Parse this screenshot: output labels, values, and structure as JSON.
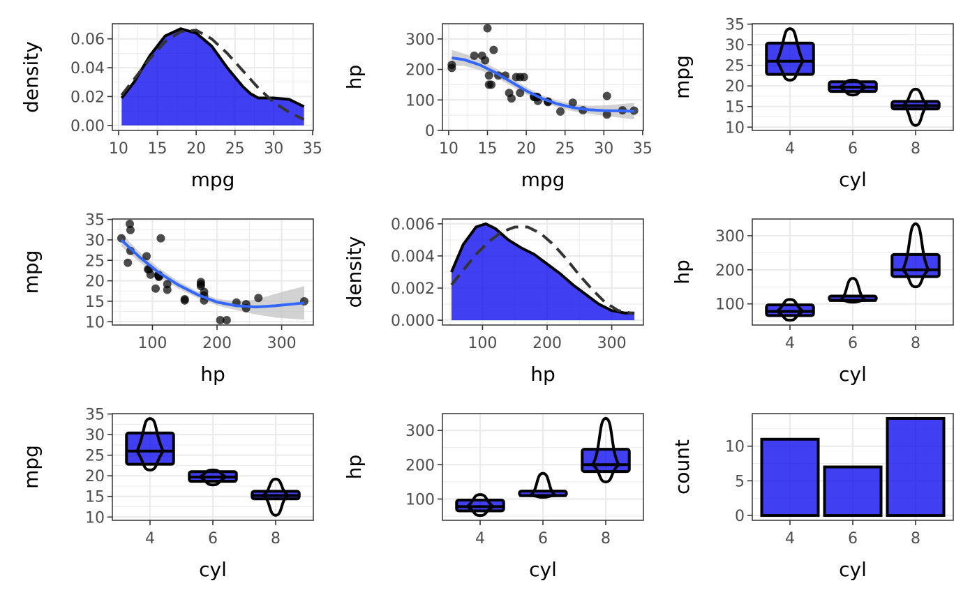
{
  "colors": {
    "fill": "#0000ee",
    "smooth": "#3366ff",
    "band": "#bfbfbf",
    "outline": "#000000",
    "grid": "#ebebeb",
    "panel_border": "#333333"
  },
  "chart_data": [
    {
      "id": "density-mpg",
      "type": "area",
      "xlabel": "mpg",
      "ylabel": "density",
      "xlim": [
        9.2,
        35.1
      ],
      "ylim": [
        -0.0035,
        0.0705
      ],
      "xticks": [
        10,
        15,
        20,
        25,
        30,
        35
      ],
      "yticks": [
        0,
        0.02,
        0.04,
        0.06
      ],
      "ytick_labels": [
        "0.00",
        "0.02",
        "0.04",
        "0.06"
      ],
      "grid": true,
      "series": [
        {
          "kind": "kde",
          "x": [
            10.4,
            12,
            14,
            16,
            18,
            20,
            22,
            24,
            26,
            27,
            28,
            30,
            32,
            33.9
          ],
          "y": [
            0.019,
            0.03,
            0.048,
            0.062,
            0.067,
            0.064,
            0.055,
            0.04,
            0.027,
            0.022,
            0.019,
            0.019,
            0.018,
            0.013
          ]
        },
        {
          "kind": "normal-reference",
          "x": [
            10.4,
            12,
            14,
            16,
            18,
            20,
            22,
            24,
            26,
            28,
            30,
            32,
            33.9
          ],
          "y": [
            0.021,
            0.032,
            0.046,
            0.058,
            0.065,
            0.066,
            0.06,
            0.05,
            0.038,
            0.026,
            0.016,
            0.009,
            0.004
          ]
        }
      ]
    },
    {
      "id": "scatter-mpg-hp",
      "type": "scatter",
      "xlabel": "mpg",
      "ylabel": "hp",
      "xlim": [
        9.2,
        35.1
      ],
      "ylim": [
        0,
        350
      ],
      "xticks": [
        10,
        15,
        20,
        25,
        30,
        35
      ],
      "yticks": [
        0,
        100,
        200,
        300
      ],
      "grid": true,
      "points": [
        {
          "x": 21.0,
          "y": 110
        },
        {
          "x": 21.0,
          "y": 110
        },
        {
          "x": 22.8,
          "y": 93
        },
        {
          "x": 21.4,
          "y": 110
        },
        {
          "x": 18.7,
          "y": 175
        },
        {
          "x": 18.1,
          "y": 105
        },
        {
          "x": 14.3,
          "y": 245
        },
        {
          "x": 24.4,
          "y": 62
        },
        {
          "x": 22.8,
          "y": 95
        },
        {
          "x": 19.2,
          "y": 123
        },
        {
          "x": 17.8,
          "y": 123
        },
        {
          "x": 16.4,
          "y": 180
        },
        {
          "x": 17.3,
          "y": 180
        },
        {
          "x": 15.2,
          "y": 180
        },
        {
          "x": 10.4,
          "y": 205
        },
        {
          "x": 10.4,
          "y": 215
        },
        {
          "x": 14.7,
          "y": 230
        },
        {
          "x": 32.4,
          "y": 66
        },
        {
          "x": 30.4,
          "y": 52
        },
        {
          "x": 33.9,
          "y": 65
        },
        {
          "x": 21.5,
          "y": 97
        },
        {
          "x": 15.5,
          "y": 150
        },
        {
          "x": 15.2,
          "y": 150
        },
        {
          "x": 13.3,
          "y": 245
        },
        {
          "x": 19.2,
          "y": 175
        },
        {
          "x": 27.3,
          "y": 66
        },
        {
          "x": 26.0,
          "y": 91
        },
        {
          "x": 30.4,
          "y": 113
        },
        {
          "x": 15.8,
          "y": 264
        },
        {
          "x": 19.7,
          "y": 175
        },
        {
          "x": 15.0,
          "y": 335
        },
        {
          "x": 21.4,
          "y": 109
        }
      ],
      "smooth": {
        "x": [
          10.4,
          12,
          14,
          16,
          18,
          20,
          22,
          24,
          26,
          28,
          30,
          32,
          33.9
        ],
        "y": [
          238,
          232,
          215,
          190,
          160,
          130,
          105,
          87,
          75,
          68,
          65,
          64,
          63
        ],
        "lower": [
          212,
          212,
          198,
          176,
          147,
          118,
          94,
          76,
          63,
          55,
          48,
          42,
          36
        ],
        "upper": [
          264,
          252,
          232,
          204,
          173,
          142,
          116,
          98,
          87,
          81,
          82,
          86,
          90
        ]
      }
    },
    {
      "id": "box-cyl-mpg-1",
      "type": "box",
      "xlabel": "cyl",
      "ylabel": "mpg",
      "categories": [
        "4",
        "6",
        "8"
      ],
      "ylim": [
        9.2,
        35.1
      ],
      "yticks": [
        10,
        15,
        20,
        25,
        30,
        35
      ],
      "grid": true,
      "boxes": [
        {
          "q1": 22.8,
          "median": 26.0,
          "q3": 30.4,
          "min": 21.4,
          "max": 33.9
        },
        {
          "q1": 18.65,
          "median": 19.7,
          "q3": 21.0,
          "min": 17.8,
          "max": 21.4
        },
        {
          "q1": 14.4,
          "median": 15.2,
          "q3": 16.25,
          "min": 10.4,
          "max": 19.2
        }
      ]
    },
    {
      "id": "scatter-hp-mpg",
      "type": "scatter",
      "xlabel": "hp",
      "ylabel": "mpg",
      "xlim": [
        38,
        349
      ],
      "ylim": [
        9.2,
        35.1
      ],
      "xticks": [
        100,
        200,
        300
      ],
      "yticks": [
        10,
        15,
        20,
        25,
        30,
        35
      ],
      "grid": true,
      "points": [
        {
          "x": 110,
          "y": 21.0
        },
        {
          "x": 110,
          "y": 21.0
        },
        {
          "x": 93,
          "y": 22.8
        },
        {
          "x": 110,
          "y": 21.4
        },
        {
          "x": 175,
          "y": 18.7
        },
        {
          "x": 105,
          "y": 18.1
        },
        {
          "x": 245,
          "y": 14.3
        },
        {
          "x": 62,
          "y": 24.4
        },
        {
          "x": 95,
          "y": 22.8
        },
        {
          "x": 123,
          "y": 19.2
        },
        {
          "x": 123,
          "y": 17.8
        },
        {
          "x": 180,
          "y": 16.4
        },
        {
          "x": 180,
          "y": 17.3
        },
        {
          "x": 180,
          "y": 15.2
        },
        {
          "x": 205,
          "y": 10.4
        },
        {
          "x": 215,
          "y": 10.4
        },
        {
          "x": 230,
          "y": 14.7
        },
        {
          "x": 66,
          "y": 32.4
        },
        {
          "x": 52,
          "y": 30.4
        },
        {
          "x": 65,
          "y": 33.9
        },
        {
          "x": 97,
          "y": 21.5
        },
        {
          "x": 150,
          "y": 15.5
        },
        {
          "x": 150,
          "y": 15.2
        },
        {
          "x": 245,
          "y": 13.3
        },
        {
          "x": 175,
          "y": 19.2
        },
        {
          "x": 66,
          "y": 27.3
        },
        {
          "x": 91,
          "y": 26.0
        },
        {
          "x": 113,
          "y": 30.4
        },
        {
          "x": 264,
          "y": 15.8
        },
        {
          "x": 175,
          "y": 19.7
        },
        {
          "x": 335,
          "y": 15.0
        },
        {
          "x": 109,
          "y": 21.4
        }
      ],
      "smooth": {
        "x": [
          52,
          80,
          110,
          140,
          170,
          200,
          230,
          260,
          290,
          335
        ],
        "y": [
          30,
          25.8,
          22,
          19,
          16.6,
          14.8,
          13.9,
          13.6,
          13.9,
          14.6
        ],
        "lower": [
          28.4,
          24.6,
          20.9,
          18.1,
          15.8,
          14.0,
          12.8,
          11.8,
          11.0,
          10.5
        ],
        "upper": [
          31.6,
          27.0,
          23.1,
          19.9,
          17.4,
          15.6,
          15.0,
          15.4,
          16.8,
          18.7
        ]
      }
    },
    {
      "id": "density-hp",
      "type": "area",
      "xlabel": "hp",
      "ylabel": "density",
      "xlim": [
        38,
        349
      ],
      "ylim": [
        -0.0003,
        0.0063
      ],
      "xticks": [
        100,
        200,
        300
      ],
      "yticks": [
        0,
        0.002,
        0.004,
        0.006
      ],
      "ytick_labels": [
        "0.000",
        "0.002",
        "0.004",
        "0.006"
      ],
      "grid": true,
      "series": [
        {
          "kind": "kde",
          "x": [
            52,
            70,
            90,
            105,
            120,
            140,
            160,
            180,
            200,
            220,
            240,
            260,
            280,
            300,
            320,
            335
          ],
          "y": [
            0.003,
            0.0047,
            0.0058,
            0.006,
            0.0057,
            0.005,
            0.0045,
            0.0041,
            0.0035,
            0.0029,
            0.0022,
            0.0016,
            0.001,
            0.0006,
            0.00045,
            0.00045
          ]
        },
        {
          "kind": "normal-reference",
          "x": [
            52,
            70,
            90,
            110,
            130,
            150,
            170,
            190,
            210,
            230,
            250,
            270,
            290,
            310,
            335
          ],
          "y": [
            0.0022,
            0.0031,
            0.0041,
            0.0049,
            0.0055,
            0.0058,
            0.0058,
            0.0054,
            0.0047,
            0.0038,
            0.0028,
            0.0019,
            0.0011,
            0.0006,
            0.0004
          ]
        }
      ]
    },
    {
      "id": "box-cyl-hp-1",
      "type": "box",
      "xlabel": "cyl",
      "ylabel": "hp",
      "categories": [
        "4",
        "6",
        "8"
      ],
      "ylim": [
        38,
        349
      ],
      "yticks": [
        100,
        200,
        300
      ],
      "grid": true,
      "boxes": [
        {
          "q1": 65.5,
          "median": 78,
          "q3": 97,
          "min": 52,
          "max": 113
        },
        {
          "q1": 110,
          "median": 110,
          "q3": 123,
          "min": 105,
          "max": 175
        },
        {
          "q1": 180,
          "median": 200,
          "q3": 245,
          "min": 150,
          "max": 335
        }
      ]
    },
    {
      "id": "box-cyl-mpg-2",
      "type": "box",
      "xlabel": "cyl",
      "ylabel": "mpg",
      "categories": [
        "4",
        "6",
        "8"
      ],
      "ylim": [
        9.2,
        35.1
      ],
      "yticks": [
        10,
        15,
        20,
        25,
        30,
        35
      ],
      "grid": true,
      "boxes": [
        {
          "q1": 22.8,
          "median": 26.0,
          "q3": 30.4,
          "min": 21.4,
          "max": 33.9
        },
        {
          "q1": 18.65,
          "median": 19.7,
          "q3": 21.0,
          "min": 17.8,
          "max": 21.4
        },
        {
          "q1": 14.4,
          "median": 15.2,
          "q3": 16.25,
          "min": 10.4,
          "max": 19.2
        }
      ]
    },
    {
      "id": "box-cyl-hp-2",
      "type": "box",
      "xlabel": "cyl",
      "ylabel": "hp",
      "categories": [
        "4",
        "6",
        "8"
      ],
      "ylim": [
        38,
        349
      ],
      "yticks": [
        100,
        200,
        300
      ],
      "grid": true,
      "boxes": [
        {
          "q1": 65.5,
          "median": 78,
          "q3": 97,
          "min": 52,
          "max": 113
        },
        {
          "q1": 110,
          "median": 110,
          "q3": 123,
          "min": 105,
          "max": 175
        },
        {
          "q1": 180,
          "median": 200,
          "q3": 245,
          "min": 150,
          "max": 335
        }
      ]
    },
    {
      "id": "bar-cyl-count",
      "type": "bar",
      "xlabel": "cyl",
      "ylabel": "count",
      "categories": [
        "4",
        "6",
        "8"
      ],
      "values": [
        11,
        7,
        14
      ],
      "ylim": [
        -0.7,
        14.7
      ],
      "yticks": [
        0,
        5,
        10
      ],
      "grid": true
    }
  ]
}
